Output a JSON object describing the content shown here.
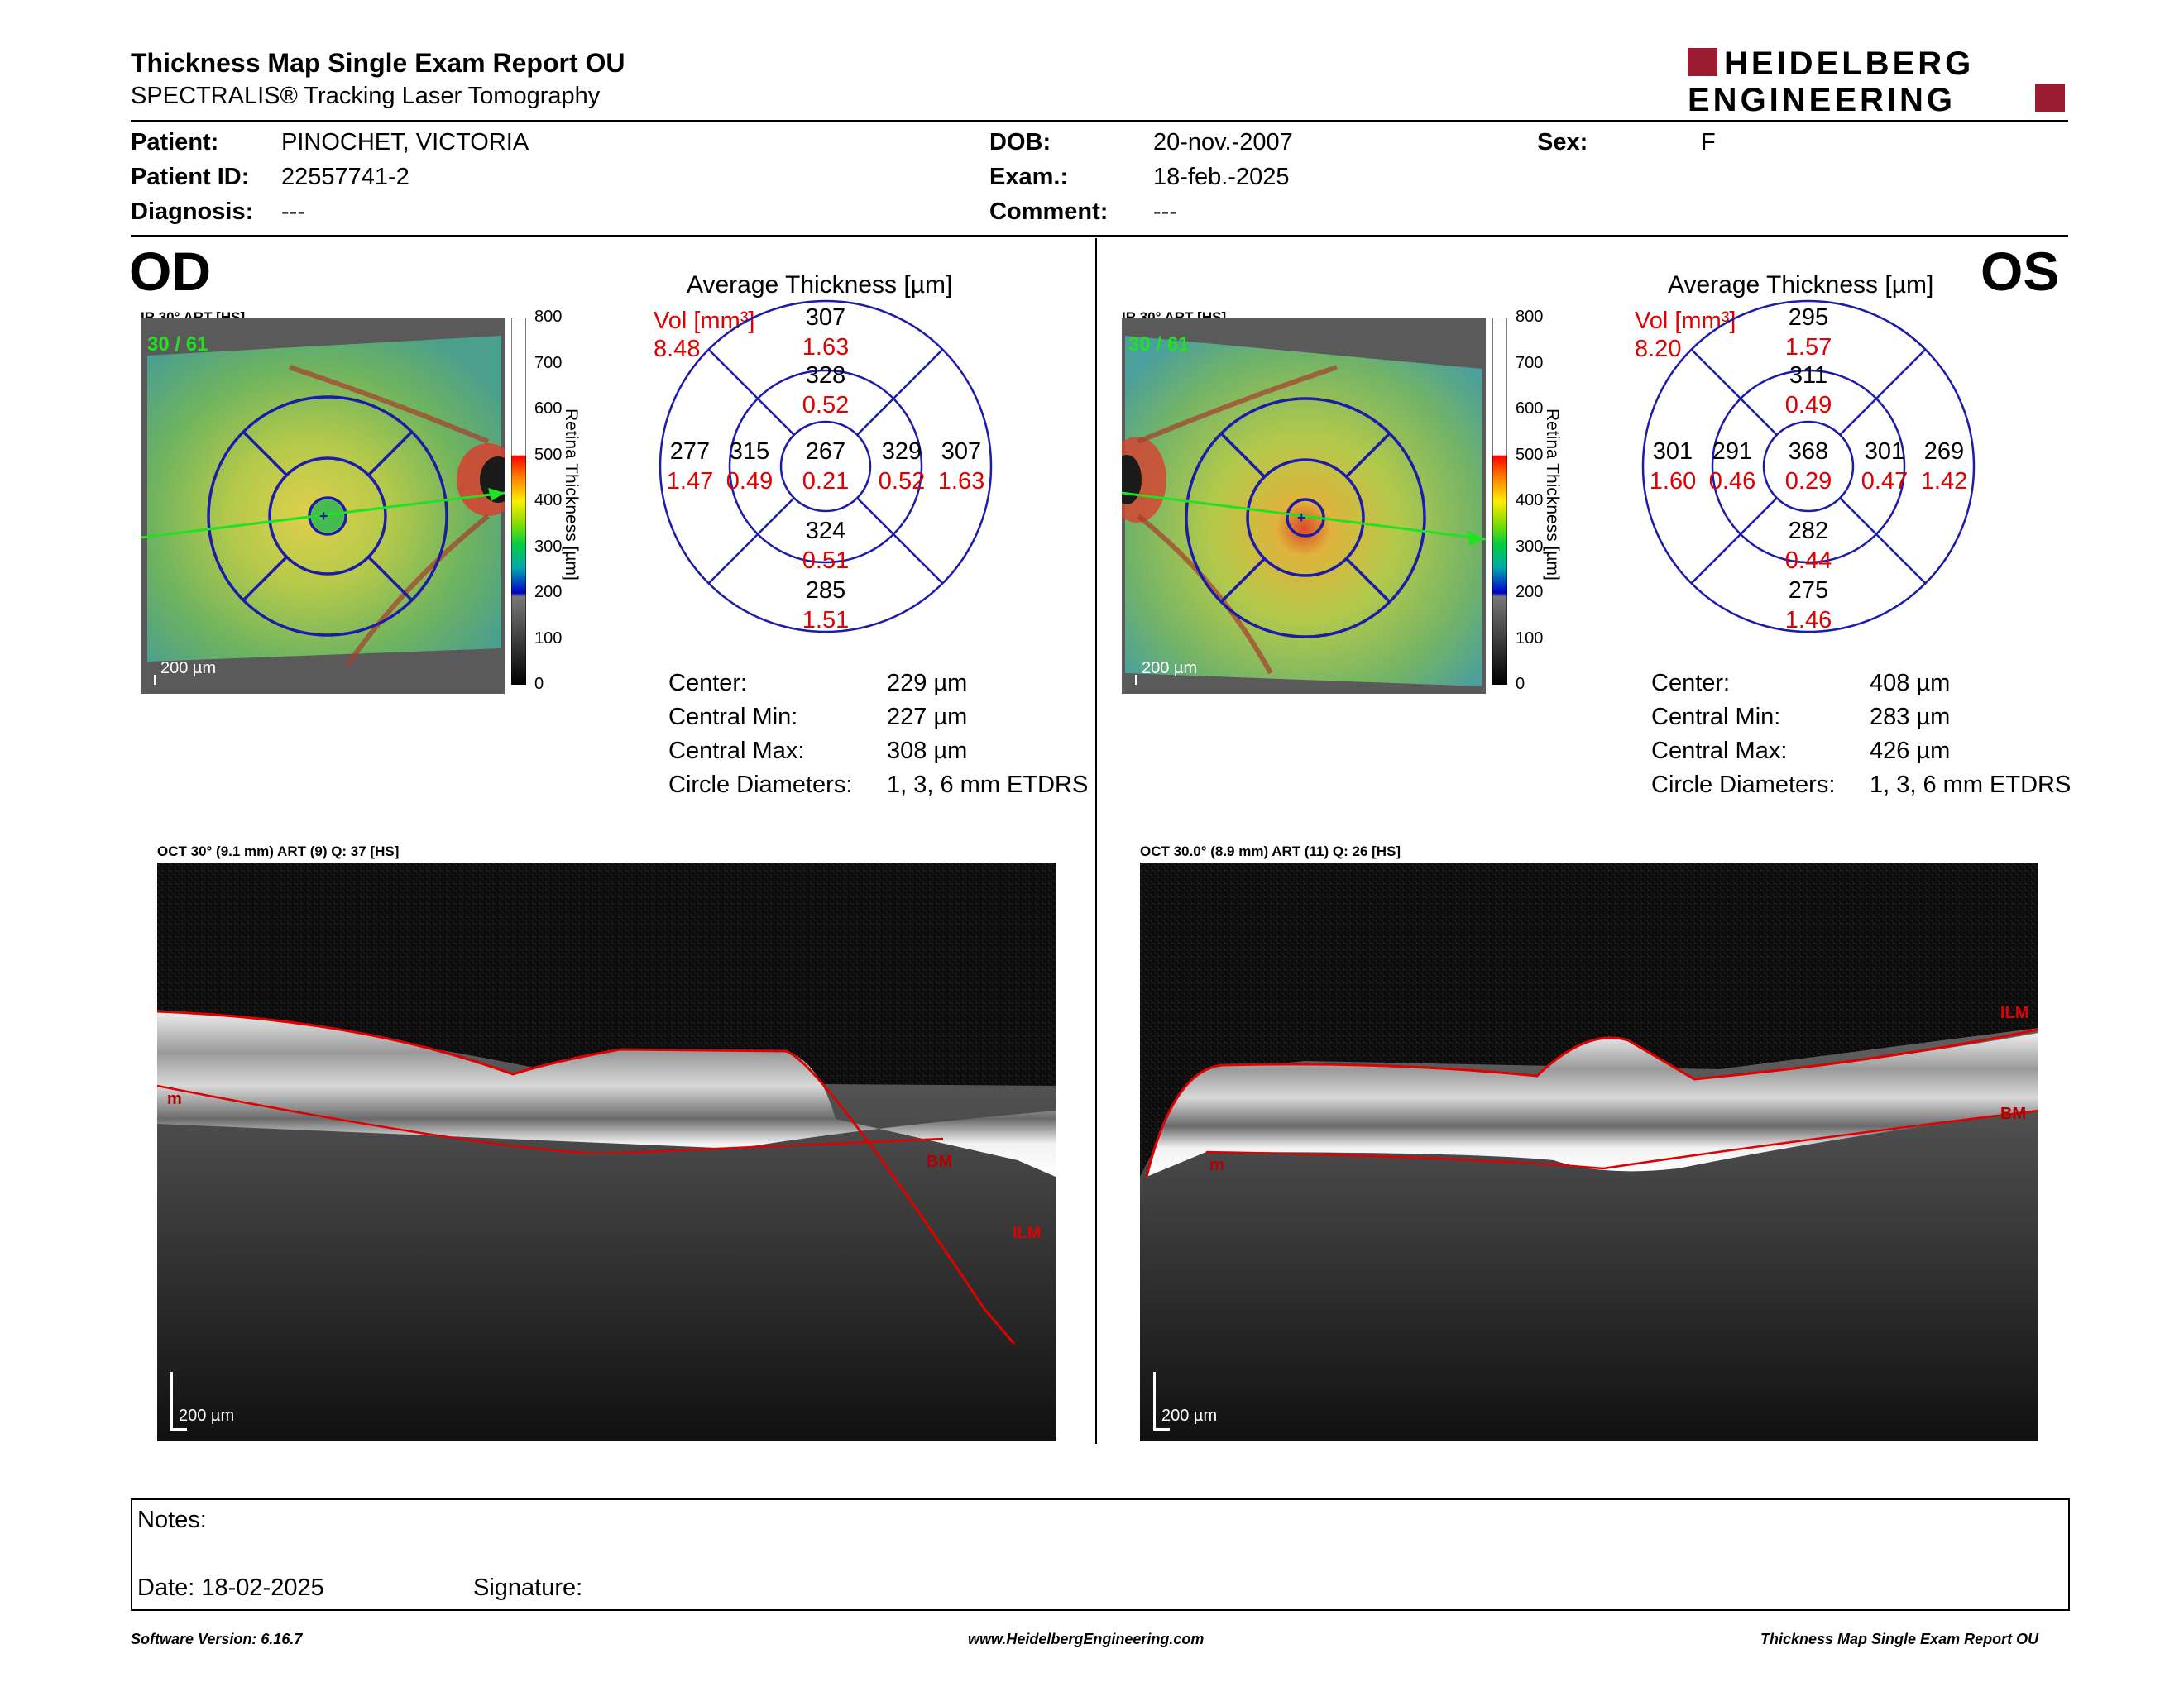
{
  "header": {
    "title": "Thickness Map Single Exam Report OU",
    "subtitle": "SPECTRALIS® Tracking Laser Tomography",
    "logo_line1": "HEIDELBERG",
    "logo_line2": "ENGINEERING"
  },
  "patient": {
    "patient_label": "Patient:",
    "patient_value": "PINOCHET, VICTORIA",
    "id_label": "Patient ID:",
    "id_value": "22557741-2",
    "diagnosis_label": "Diagnosis:",
    "diagnosis_value": "---",
    "dob_label": "DOB:",
    "dob_value": "20-nov.-2007",
    "exam_label": "Exam.:",
    "exam_value": "18-feb.-2025",
    "comment_label": "Comment:",
    "comment_value": "---",
    "sex_label": "Sex:",
    "sex_value": "F"
  },
  "common": {
    "avg_title": "Average Thickness [µm]",
    "vol_label": "Vol [mm³]",
    "ir_label": "IR 30° ART [HS]",
    "frames": "30 / 61",
    "scale": "200 µm",
    "colorbar_label": "Retina  Thickness [µm]",
    "colorbar_ticks": [
      "800",
      "700",
      "600",
      "500",
      "400",
      "300",
      "200",
      "100",
      "0"
    ],
    "center_label": "Center:",
    "central_min_label": "Central Min:",
    "central_max_label": "Central Max:",
    "circle_label": "Circle Diameters:",
    "circle_value": "1, 3, 6 mm ETDRS",
    "bm": "BM",
    "ilm": "ILM",
    "m": "m"
  },
  "od": {
    "eye": "OD",
    "total_vol": "8.48",
    "sectors": {
      "outer_sup": {
        "t": "307",
        "v": "1.63"
      },
      "inner_sup": {
        "t": "328",
        "v": "0.52"
      },
      "outer_left": {
        "t": "277",
        "v": "1.47"
      },
      "inner_left": {
        "t": "315",
        "v": "0.49"
      },
      "center": {
        "t": "267",
        "v": "0.21"
      },
      "inner_right": {
        "t": "329",
        "v": "0.52"
      },
      "outer_right": {
        "t": "307",
        "v": "1.63"
      },
      "inner_inf": {
        "t": "324",
        "v": "0.51"
      },
      "outer_inf": {
        "t": "285",
        "v": "1.51"
      }
    },
    "center_value": "229 µm",
    "central_min_value": "227 µm",
    "central_max_value": "308 µm",
    "oct_label": "OCT 30° (9.1 mm) ART (9) Q: 37 [HS]"
  },
  "os": {
    "eye": "OS",
    "total_vol": "8.20",
    "sectors": {
      "outer_sup": {
        "t": "295",
        "v": "1.57"
      },
      "inner_sup": {
        "t": "311",
        "v": "0.49"
      },
      "outer_left": {
        "t": "301",
        "v": "1.60"
      },
      "inner_left": {
        "t": "291",
        "v": "0.46"
      },
      "center": {
        "t": "368",
        "v": "0.29"
      },
      "inner_right": {
        "t": "301",
        "v": "0.47"
      },
      "outer_right": {
        "t": "269",
        "v": "1.42"
      },
      "inner_inf": {
        "t": "282",
        "v": "0.44"
      },
      "outer_inf": {
        "t": "275",
        "v": "1.46"
      }
    },
    "center_value": "408 µm",
    "central_min_value": "283 µm",
    "central_max_value": "426 µm",
    "oct_label": "OCT 30.0° (8.9 mm) ART (11) Q: 26 [HS]"
  },
  "notes": {
    "notes_label": "Notes:",
    "date_label": "Date: 18-02-2025",
    "signature_label": "Signature:"
  },
  "footer": {
    "left": "Software Version: 6.16.7",
    "center": "www.HeidelbergEngineering.com",
    "right": "Thickness Map Single Exam Report OU"
  },
  "colors": {
    "accent_red": "#e00000",
    "logo_red": "#9b1b30",
    "grid_blue": "#1c1ca8",
    "scan_green": "#22e022"
  }
}
